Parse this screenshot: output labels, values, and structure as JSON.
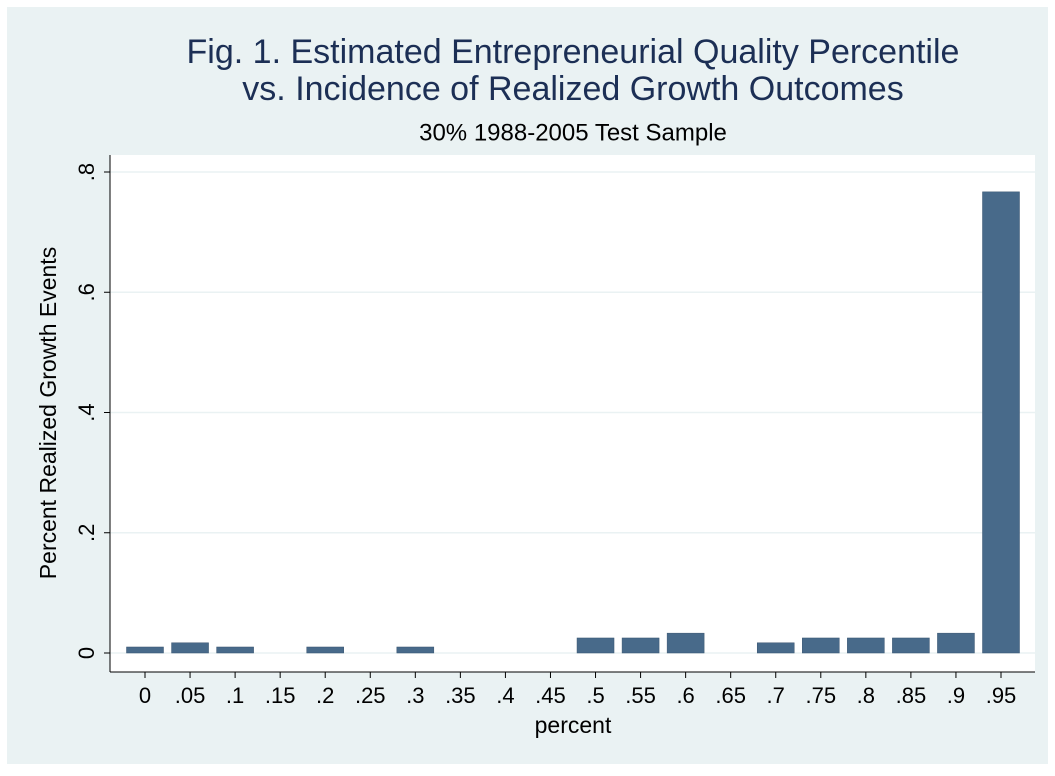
{
  "chart_data": {
    "type": "bar",
    "title": [
      "Fig. 1. Estimated Entrepreneurial Quality Percentile",
      "vs. Incidence of Realized Growth Outcomes"
    ],
    "subtitle": "30% 1988-2005 Test Sample",
    "x_label": "percent",
    "y_label": "Percent Realized Growth Events",
    "categories": [
      "0",
      ".05",
      ".1",
      ".15",
      ".2",
      ".25",
      ".3",
      ".35",
      ".4",
      ".45",
      ".5",
      ".55",
      ".6",
      ".65",
      ".7",
      ".75",
      ".8",
      ".85",
      ".9",
      ".95"
    ],
    "values": [
      0.01,
      0.017,
      0.01,
      0,
      0.01,
      0,
      0.01,
      0,
      0,
      0,
      0.025,
      0.025,
      0.033,
      0,
      0.017,
      0.025,
      0.025,
      0.025,
      0.033,
      0.767
    ],
    "color": "#486a8a",
    "ylim": [
      0,
      0.8
    ],
    "yticks": [
      0,
      {
        "value": 0.2,
        "label": ".2"
      },
      {
        "value": 0.4,
        "label": ".4"
      },
      {
        "value": 0.6,
        "label": ".6"
      },
      {
        "value": 0.8,
        "label": ".8"
      }
    ],
    "grid": true
  }
}
